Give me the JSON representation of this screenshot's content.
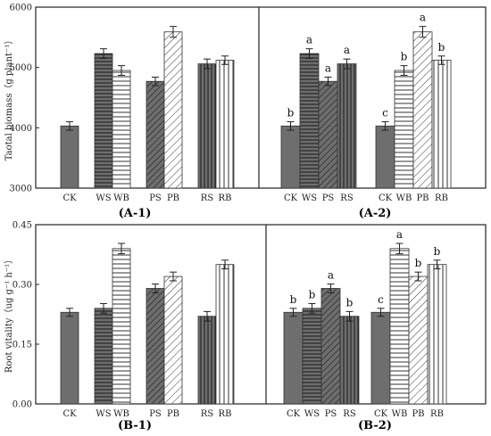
{
  "chart_data": [
    {
      "id": "A-1",
      "type": "bar",
      "ylabel": "Taotal biomass（g plant⁻¹）",
      "ylim": [
        3000,
        6000
      ],
      "yticks": [
        "3000",
        "4000",
        "5000",
        "6000"
      ],
      "groups": [
        {
          "bars": [
            {
              "category": "CK",
              "value": 4030,
              "error": 70,
              "pattern": "solid"
            }
          ]
        },
        {
          "bars": [
            {
              "category": "WS",
              "value": 5230,
              "error": 80,
              "pattern": "hlines"
            },
            {
              "category": "WB",
              "value": 4950,
              "error": 80,
              "pattern": "hlines-wide"
            }
          ]
        },
        {
          "bars": [
            {
              "category": "PS",
              "value": 4770,
              "error": 70,
              "pattern": "dark-diag"
            },
            {
              "category": "PB",
              "value": 5590,
              "error": 90,
              "pattern": "light-diag"
            }
          ]
        },
        {
          "bars": [
            {
              "category": "RS",
              "value": 5060,
              "error": 80,
              "pattern": "dark-vlines"
            },
            {
              "category": "RB",
              "value": 5120,
              "error": 70,
              "pattern": "light-vlines"
            }
          ]
        }
      ]
    },
    {
      "id": "A-2",
      "type": "bar",
      "ylim": [
        3000,
        6000
      ],
      "groups": [
        {
          "bars": [
            {
              "category": "CK",
              "value": 4030,
              "error": 70,
              "pattern": "solid",
              "letter": "b"
            },
            {
              "category": "WS",
              "value": 5230,
              "error": 80,
              "pattern": "hlines",
              "letter": "a"
            },
            {
              "category": "PS",
              "value": 4770,
              "error": 70,
              "pattern": "dark-diag",
              "letter": "a"
            },
            {
              "category": "RS",
              "value": 5060,
              "error": 80,
              "pattern": "dark-vlines",
              "letter": "a"
            }
          ]
        },
        {
          "bars": [
            {
              "category": "CK",
              "value": 4030,
              "error": 70,
              "pattern": "solid",
              "letter": "c"
            },
            {
              "category": "WB",
              "value": 4950,
              "error": 80,
              "pattern": "hlines-wide",
              "letter": "b"
            },
            {
              "category": "PB",
              "value": 5590,
              "error": 90,
              "pattern": "light-diag",
              "letter": "a"
            },
            {
              "category": "RB",
              "value": 5120,
              "error": 70,
              "pattern": "light-vlines",
              "letter": "b"
            }
          ]
        }
      ]
    },
    {
      "id": "B-1",
      "type": "bar",
      "ylabel": "Root vitality（ug g⁻¹ h⁻¹）",
      "ylim": [
        0,
        0.45
      ],
      "yticks": [
        "0.00",
        "0.15",
        "0.30",
        "0.45"
      ],
      "groups": [
        {
          "bars": [
            {
              "category": "CK",
              "value": 0.23,
              "error": 0.01,
              "pattern": "solid"
            }
          ]
        },
        {
          "bars": [
            {
              "category": "WS",
              "value": 0.24,
              "error": 0.012,
              "pattern": "hlines"
            },
            {
              "category": "WB",
              "value": 0.39,
              "error": 0.013,
              "pattern": "hlines-wide"
            }
          ]
        },
        {
          "bars": [
            {
              "category": "PS",
              "value": 0.29,
              "error": 0.011,
              "pattern": "dark-diag"
            },
            {
              "category": "PB",
              "value": 0.32,
              "error": 0.011,
              "pattern": "light-diag"
            }
          ]
        },
        {
          "bars": [
            {
              "category": "RS",
              "value": 0.22,
              "error": 0.012,
              "pattern": "dark-vlines"
            },
            {
              "category": "RB",
              "value": 0.35,
              "error": 0.011,
              "pattern": "light-vlines"
            }
          ]
        }
      ]
    },
    {
      "id": "B-2",
      "type": "bar",
      "ylim": [
        0,
        0.45
      ],
      "groups": [
        {
          "bars": [
            {
              "category": "CK",
              "value": 0.23,
              "error": 0.01,
              "pattern": "solid",
              "letter": "b"
            },
            {
              "category": "WS",
              "value": 0.24,
              "error": 0.012,
              "pattern": "hlines",
              "letter": "b"
            },
            {
              "category": "PS",
              "value": 0.29,
              "error": 0.011,
              "pattern": "dark-diag",
              "letter": "a"
            },
            {
              "category": "RS",
              "value": 0.22,
              "error": 0.012,
              "pattern": "dark-vlines",
              "letter": "b"
            }
          ]
        },
        {
          "bars": [
            {
              "category": "CK",
              "value": 0.23,
              "error": 0.01,
              "pattern": "solid",
              "letter": "c"
            },
            {
              "category": "WB",
              "value": 0.39,
              "error": 0.013,
              "pattern": "hlines-wide",
              "letter": "a"
            },
            {
              "category": "PB",
              "value": 0.32,
              "error": 0.011,
              "pattern": "light-diag",
              "letter": "b"
            },
            {
              "category": "RB",
              "value": 0.35,
              "error": 0.011,
              "pattern": "light-vlines",
              "letter": "b"
            }
          ]
        }
      ]
    }
  ],
  "panel_labels": {
    "a1": "(A-1)",
    "a2": "(A-2)",
    "b1": "(B-1)",
    "b2": "(B-2)"
  },
  "colors": {
    "bar_dark": "#6e6e6e",
    "bar_light": "#ffffff",
    "outline": "#333333",
    "frame": "#222222"
  }
}
